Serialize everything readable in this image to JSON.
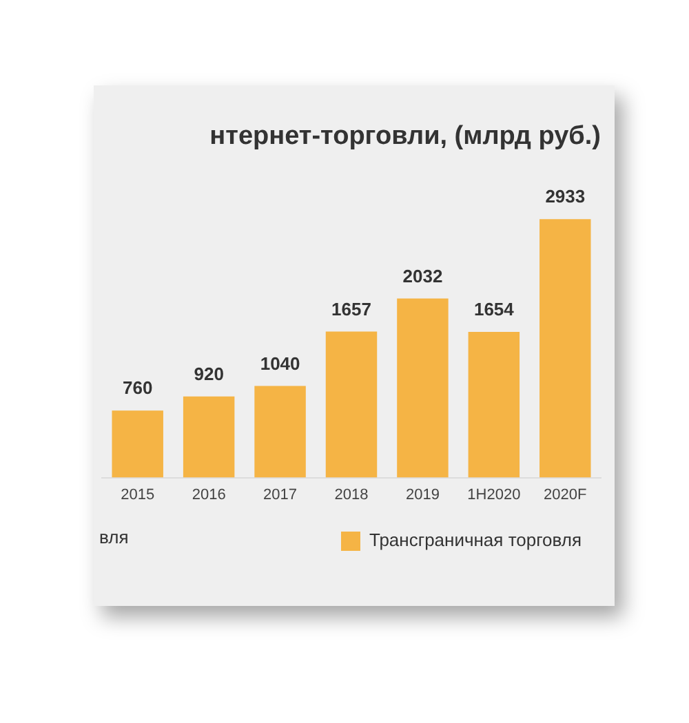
{
  "chart_data": {
    "type": "bar",
    "title": "нтернет-торговли, (млрд руб.)",
    "categories": [
      "2015",
      "2016",
      "2017",
      "2018",
      "2019",
      "1H2020",
      "2020F"
    ],
    "series": [
      {
        "name": "Трансграничная торговля",
        "color": "#f5b445",
        "values": [
          760,
          920,
          1040,
          1657,
          2032,
          1654,
          2933
        ]
      }
    ],
    "data_labels": true,
    "legend": "bottom",
    "grid": false,
    "annotations": [
      "вля"
    ]
  }
}
